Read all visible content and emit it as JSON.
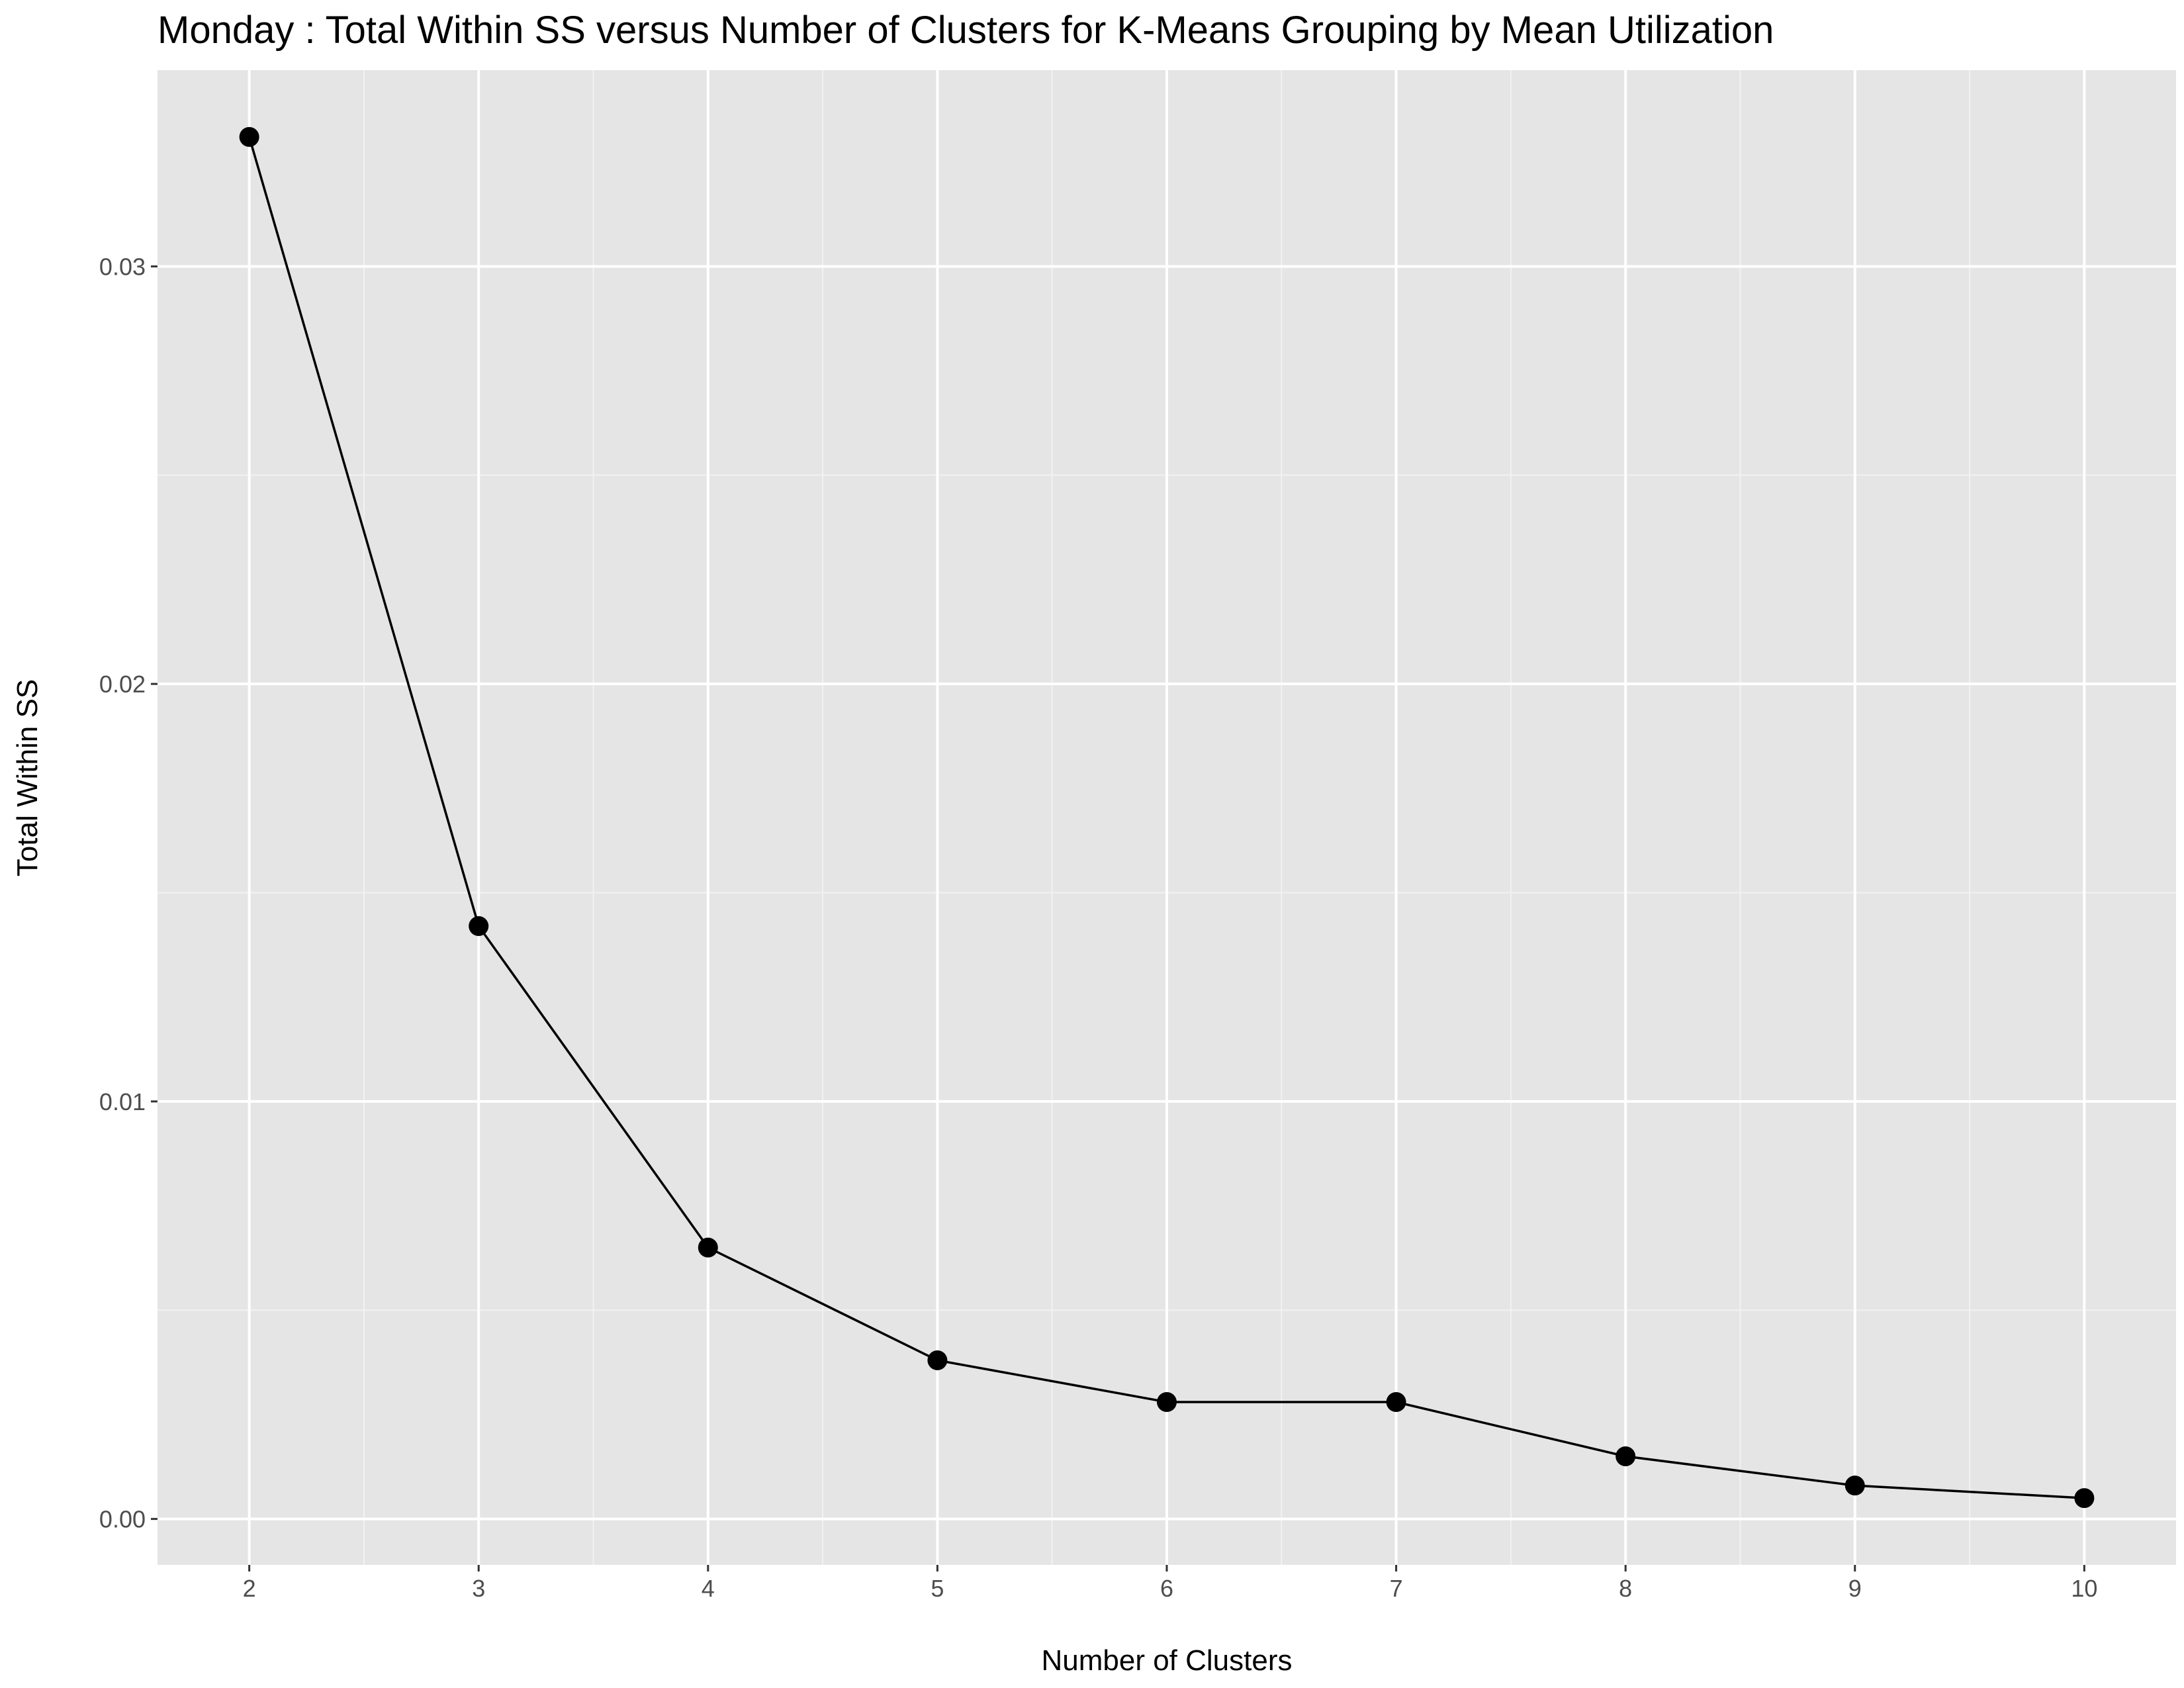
{
  "chart_data": {
    "type": "line",
    "title": "Monday : Total Within SS versus Number of Clusters for K-Means Grouping by Mean Utilization",
    "xlabel": "Number of Clusters",
    "ylabel": "Total Within SS",
    "x": [
      2,
      3,
      4,
      5,
      6,
      7,
      8,
      9,
      10
    ],
    "series": [
      {
        "values": [
          0.0331,
          0.0142,
          0.0065,
          0.0038,
          0.0028,
          0.0028,
          0.0015,
          0.0008,
          0.0005
        ]
      }
    ],
    "xlim": [
      1.6,
      10.4
    ],
    "ylim": [
      -0.0011,
      0.0347
    ],
    "xticks": [
      2,
      3,
      4,
      5,
      6,
      7,
      8,
      9,
      10
    ],
    "xtick_labels": [
      "2",
      "3",
      "4",
      "5",
      "6",
      "7",
      "8",
      "9",
      "10"
    ],
    "yticks": [
      0.0,
      0.01,
      0.02,
      0.03
    ],
    "ytick_labels": [
      "0.00",
      "0.01",
      "0.02",
      "0.03"
    ],
    "y_minor_ticks": [
      0.005,
      0.015,
      0.025
    ],
    "grid": true,
    "legend": "none",
    "colors": {
      "panel_background": "#e5e5e5",
      "grid_major": "#ffffff",
      "grid_minor": "#f2f2f2",
      "line": "#000000",
      "point": "#000000",
      "tick_mark": "#333333",
      "tick_text": "#4d4d4d"
    }
  }
}
